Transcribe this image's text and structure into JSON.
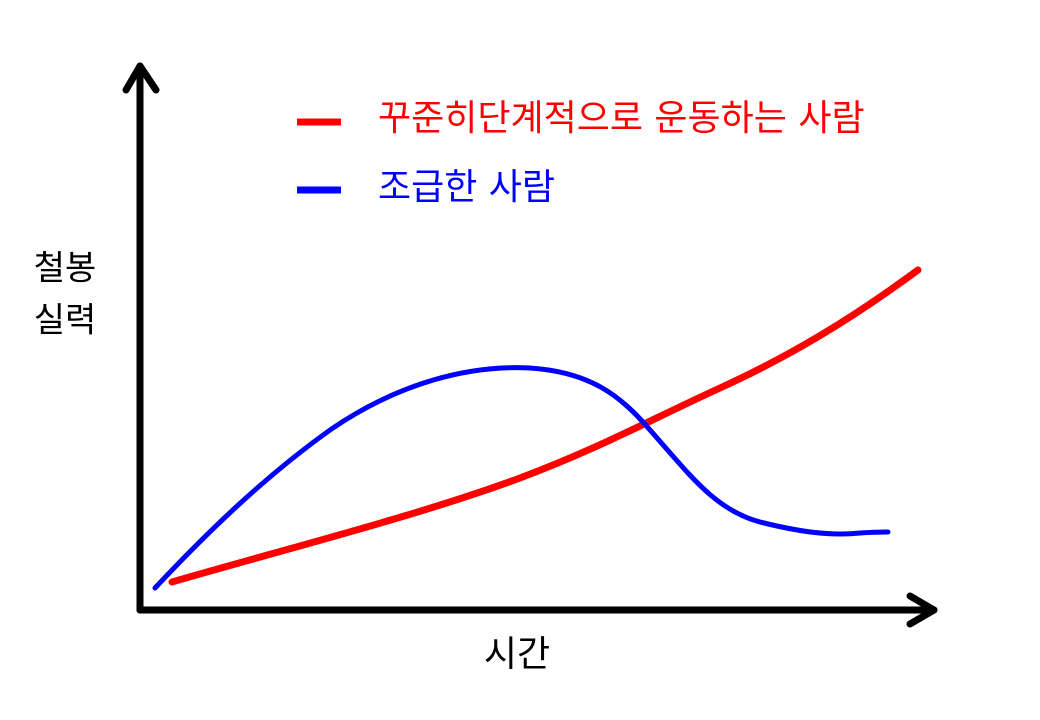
{
  "legend": {
    "items": [
      {
        "label": "꾸준히단계적으로 운동하는 사람",
        "color": "#ff0000"
      },
      {
        "label": "조급한 사람",
        "color": "#0000ff"
      }
    ]
  },
  "y_axis": {
    "label_lines": [
      "철봉",
      "실력"
    ]
  },
  "x_axis": {
    "label": "시간"
  }
}
